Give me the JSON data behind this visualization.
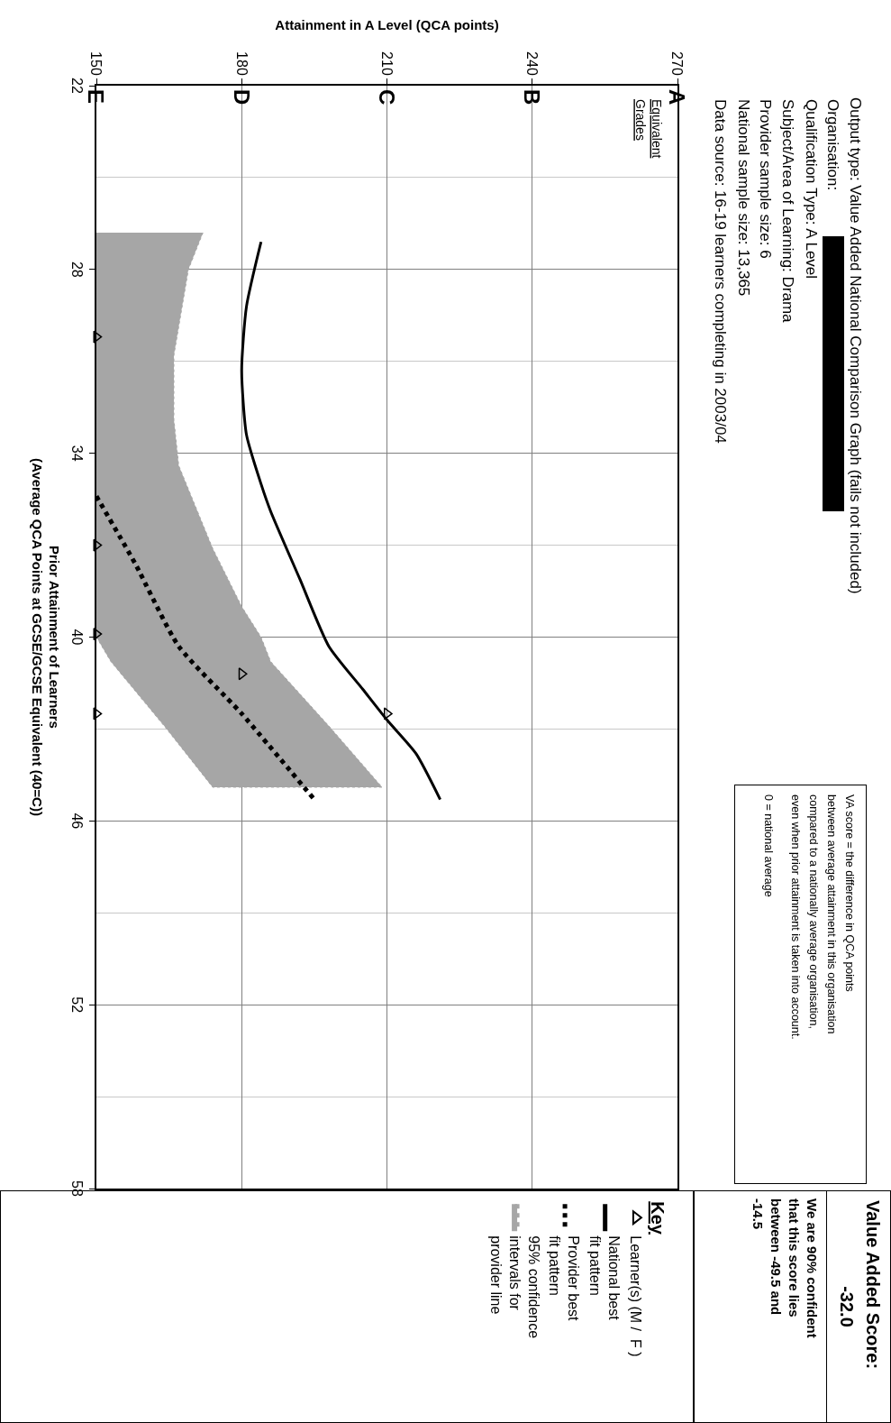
{
  "chart_data": {
    "type": "line",
    "title": "Output type: Value Added National Comparison Graph (fails not included)",
    "xlabel": "Attainment in A Level (QCA points)",
    "ylabel": "Prior Attainment of Learners\n(Average QCA Points at GCSE/GCSE Equivalent (40=C))",
    "legend_title": "Key",
    "xlim": [
      150,
      270
    ],
    "xticks": [
      150,
      180,
      210,
      240,
      270
    ],
    "ylim": [
      58,
      22
    ],
    "yticks": [
      22,
      {
        "value": 25,
        "label": null
      },
      28,
      {
        "value": 31,
        "label": null
      },
      34,
      {
        "value": 37,
        "label": null
      },
      40,
      {
        "value": 43,
        "label": null
      },
      46,
      {
        "value": 49,
        "label": null
      },
      52,
      {
        "value": 55,
        "label": null
      },
      58
    ],
    "grid": true,
    "legend": "bottom",
    "series": [
      {
        "name": "Learner(s) (M /  F )",
        "type": "scatter",
        "marker": "triangle",
        "color": "#000000",
        "x": [
          150,
          150,
          150,
          180,
          150,
          210
        ],
        "values": [
          30.2,
          37.0,
          39.9,
          41.2,
          42.5,
          42.5
        ]
      },
      {
        "name": "National best\nfit pattern",
        "line_style": "solid",
        "marker": "none",
        "color": "#000000",
        "x": [
          184,
          181,
          180,
          181,
          184,
          186,
          192,
          198,
          205,
          210,
          216,
          221
        ],
        "values": [
          27.1,
          29.2,
          31.3,
          33.4,
          35.0,
          35.9,
          38.1,
          40.3,
          41.7,
          42.7,
          43.8,
          45.3
        ]
      },
      {
        "name": "Provider best\nfit pattern",
        "line_style": "dotted",
        "marker": "none",
        "color": "#000000",
        "x": [
          150,
          158,
          167,
          180,
          195
        ],
        "values": [
          35.4,
          37.6,
          40.3,
          42.5,
          45.3
        ]
      },
      {
        "name": "95% confidence\nintervals for\nprovider line",
        "type": "area",
        "color": "#a6a6a6",
        "x": [
          172,
          169,
          166,
          166,
          167,
          174,
          180,
          184,
          186,
          198,
          209,
          174,
          164,
          153,
          150,
          150
        ],
        "values": [
          26.8,
          28.0,
          30.8,
          32.9,
          34.4,
          37.1,
          39.0,
          40.0,
          40.8,
          42.9,
          44.9,
          44.9,
          42.9,
          40.8,
          40.0,
          26.8
        ]
      }
    ],
    "annotations": [
      "Organisation:",
      "Qualification Type: A Level",
      "Subject/Area of Learning: Drama",
      "Provider sample size: 6",
      "National sample size: 13,365",
      "Data source: 16-19 learners completing in 2003/04",
      "Equivalent\nGrades",
      "A",
      "B",
      "C",
      "D",
      "E",
      "VA score = the difference in QCA points\nbetween average attainment in this organisation\ncompared to a nationally average organisation,\neven when prior attainment is taken into account.",
      "0 = national average",
      "Value Added Score:",
      "-32.0",
      "We are 90% confident\nthat this score lies\nbetween -49.5 and\n-14.5"
    ]
  }
}
